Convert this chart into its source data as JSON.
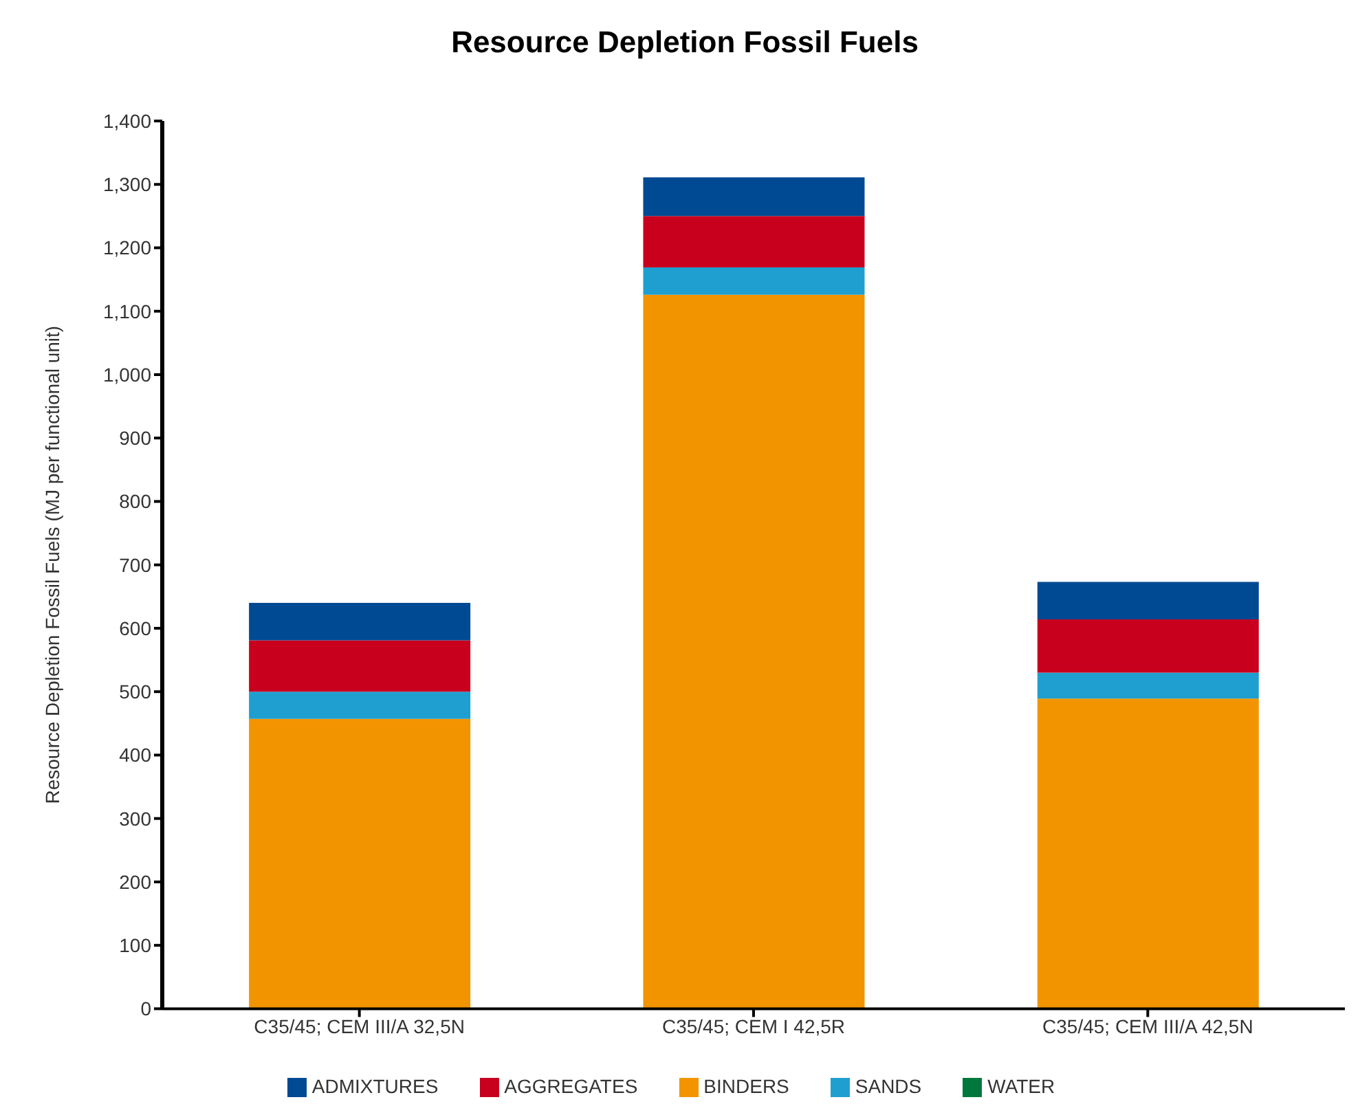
{
  "chart_data": {
    "type": "bar",
    "title": "Resource Depletion Fossil Fuels",
    "ylabel": "Resource Depletion Fossil Fuels (MJ per functional unit)",
    "categories": [
      "C35/45; CEM III/A 32,5N",
      "C35/45; CEM I 42,5R",
      "C35/45; CEM III/A 42,5N"
    ],
    "stacked": true,
    "series": [
      {
        "name": "BINDERS",
        "color": "#f29400",
        "values": [
          457,
          1126,
          489
        ]
      },
      {
        "name": "SANDS",
        "color": "#1f9fd0",
        "values": [
          43,
          43,
          41
        ]
      },
      {
        "name": "AGGREGATES",
        "color": "#c8001e",
        "values": [
          81,
          81,
          84
        ]
      },
      {
        "name": "WATER",
        "color": "#00783c",
        "values": [
          0,
          0,
          0
        ]
      },
      {
        "name": "ADMIXTURES",
        "color": "#004a93",
        "values": [
          59,
          61,
          59
        ]
      }
    ],
    "ylim": [
      0,
      1400
    ],
    "yticks": [
      {
        "value": 0,
        "label": "0"
      },
      {
        "value": 100,
        "label": "100"
      },
      {
        "value": 200,
        "label": "200"
      },
      {
        "value": 300,
        "label": "300"
      },
      {
        "value": 400,
        "label": "400"
      },
      {
        "value": 500,
        "label": "500"
      },
      {
        "value": 600,
        "label": "600"
      },
      {
        "value": 700,
        "label": "700"
      },
      {
        "value": 800,
        "label": "800"
      },
      {
        "value": 900,
        "label": "900"
      },
      {
        "value": 1000,
        "label": "1,000"
      },
      {
        "value": 1100,
        "label": "1,100"
      },
      {
        "value": 1200,
        "label": "1,200"
      },
      {
        "value": 1300,
        "label": "1,300"
      },
      {
        "value": 1400,
        "label": "1,400"
      }
    ],
    "grid": false,
    "legend": "bottom"
  }
}
